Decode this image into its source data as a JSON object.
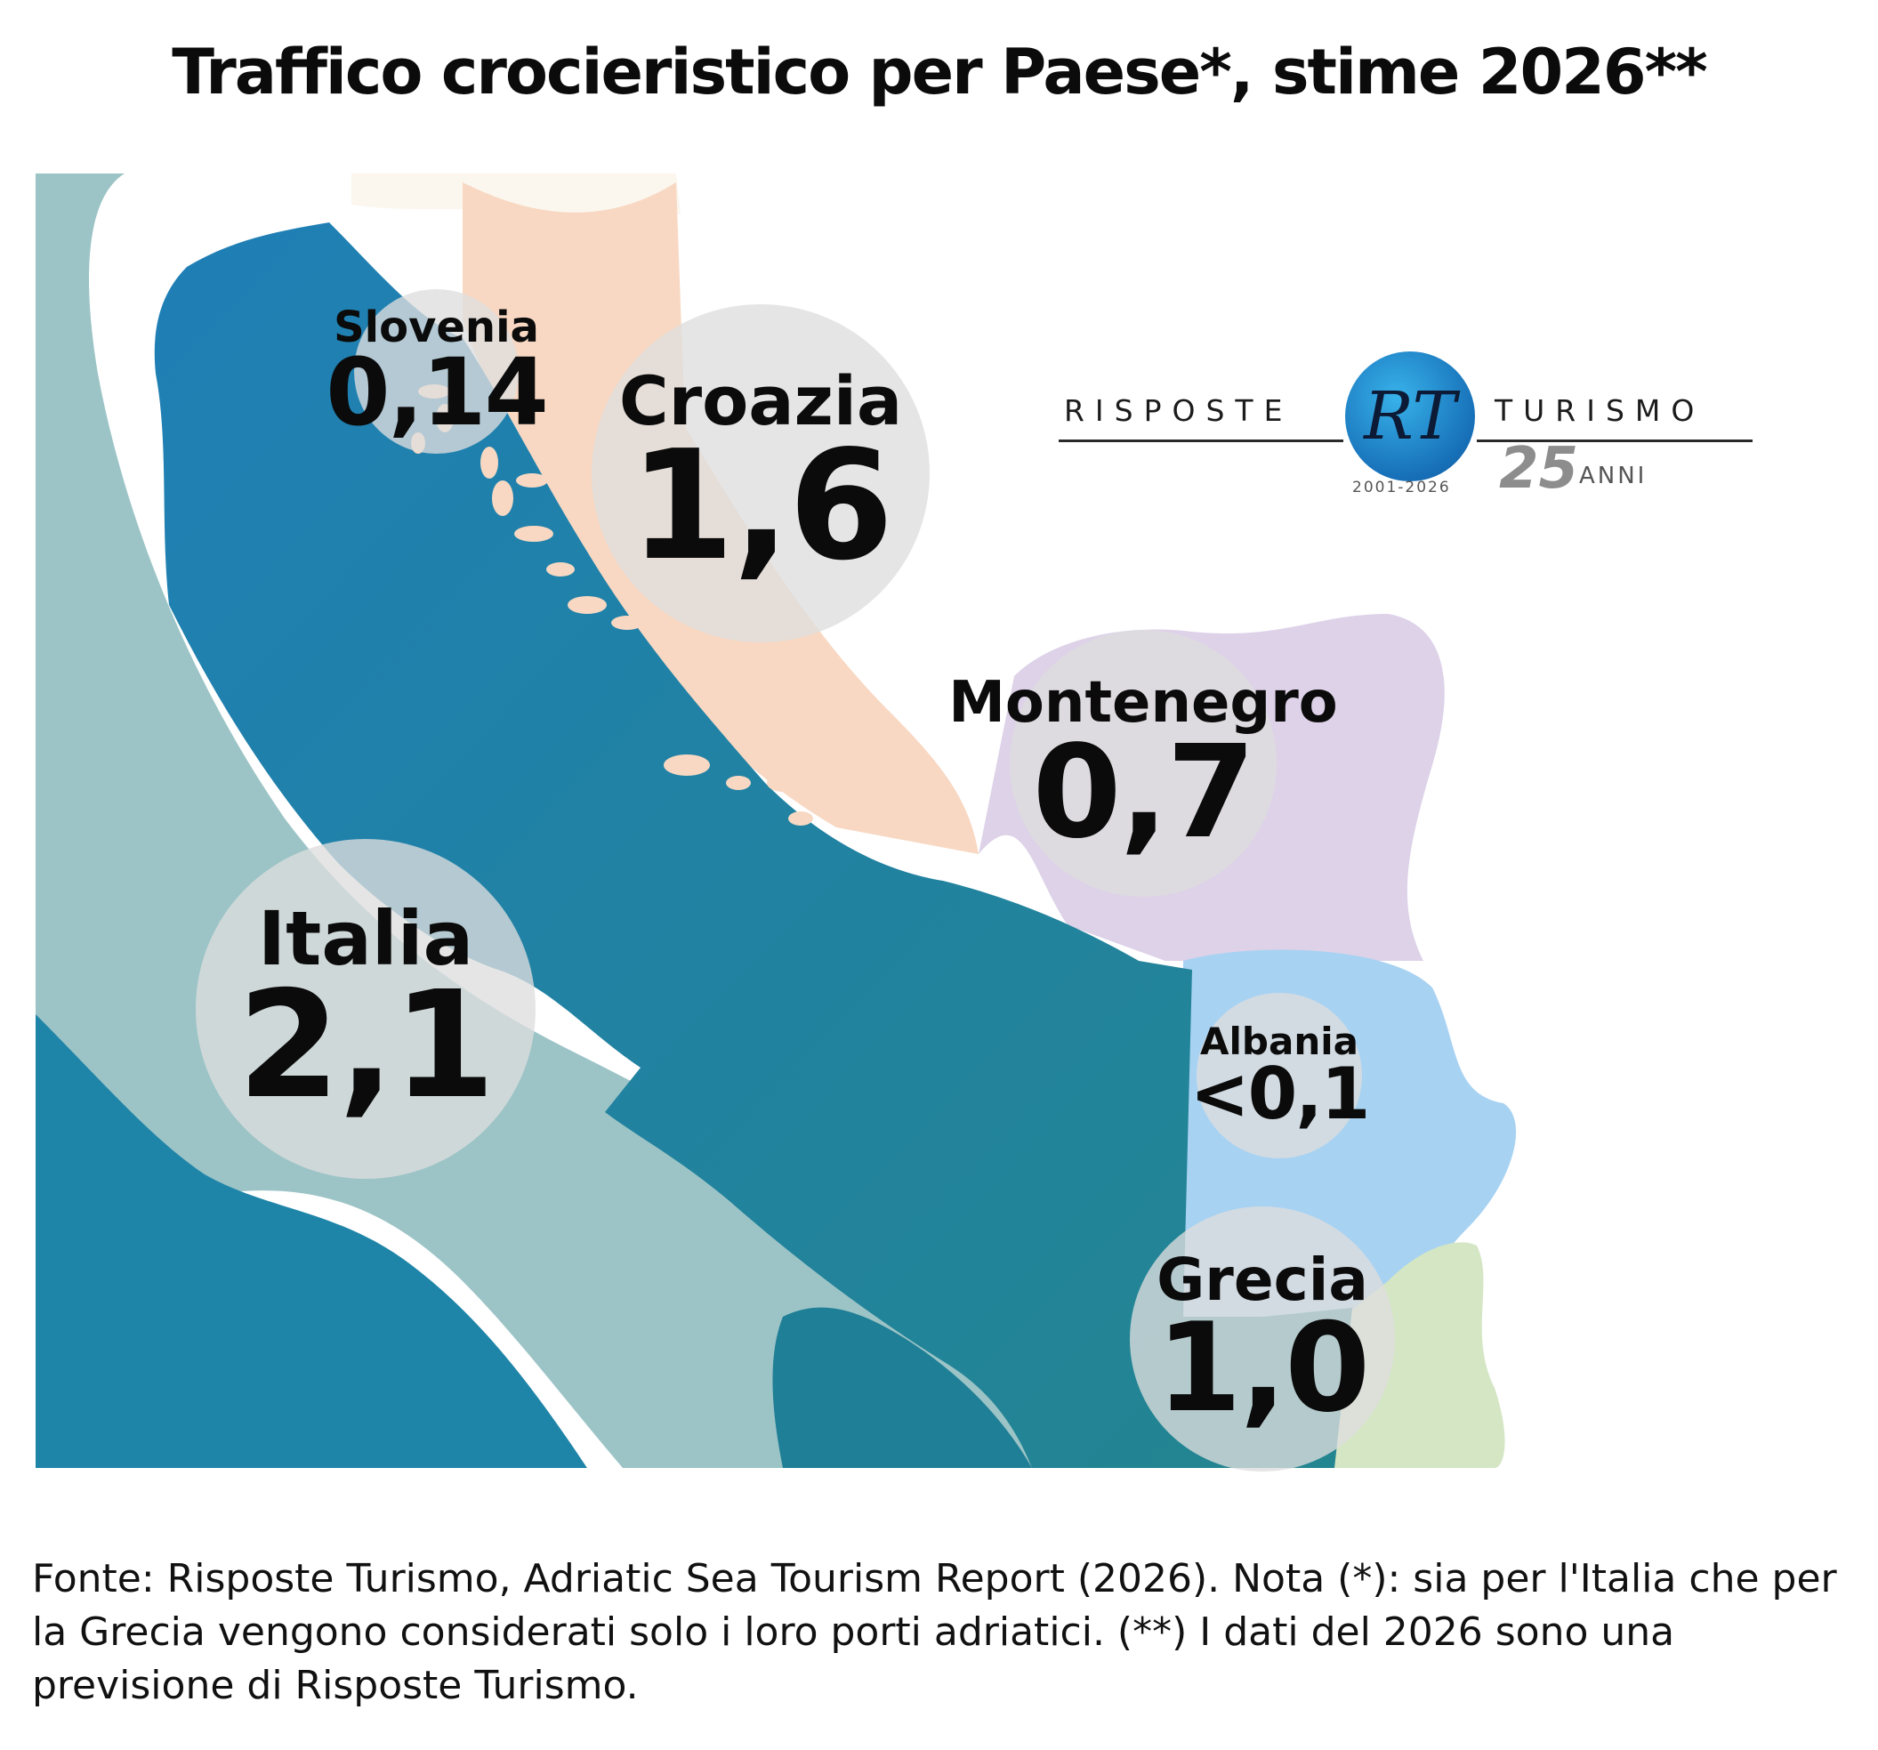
{
  "title": "Traffico crocieristico per Paese*, stime 2026**",
  "countries": [
    {
      "name": "Slovenia",
      "value": "0,14"
    },
    {
      "name": "Croazia",
      "value": "1,6"
    },
    {
      "name": "Montenegro",
      "value": "0,7"
    },
    {
      "name": "Italia",
      "value": "2,1"
    },
    {
      "name": "Albania",
      "value": "<0,1"
    },
    {
      "name": "Grecia",
      "value": "1,0"
    }
  ],
  "logo": {
    "left_word": "RISPOSTE",
    "right_word": "TURISMO",
    "monogram": "RT",
    "years": "2001-2026",
    "anniversary_number": "25",
    "anniversary_word": "ANNI"
  },
  "footer": "Fonte: Risposte Turismo, Adriatic Sea Tourism Report (2026). Nota (*): sia per l'Italia che per la Grecia vengono considerati solo i loro porti adriatici. (**) I dati del 2026 sono una previsione di Risposte Turismo.",
  "colors": {
    "sea": "#1f88a8",
    "italy_land": "#9cc4c6",
    "croatia_land": "#f8d8c2",
    "montenegro_land": "#ddd2e8",
    "albania_land": "#a8d2f2",
    "greece_land": "#d4e6c4",
    "bubble": "#dedede"
  }
}
